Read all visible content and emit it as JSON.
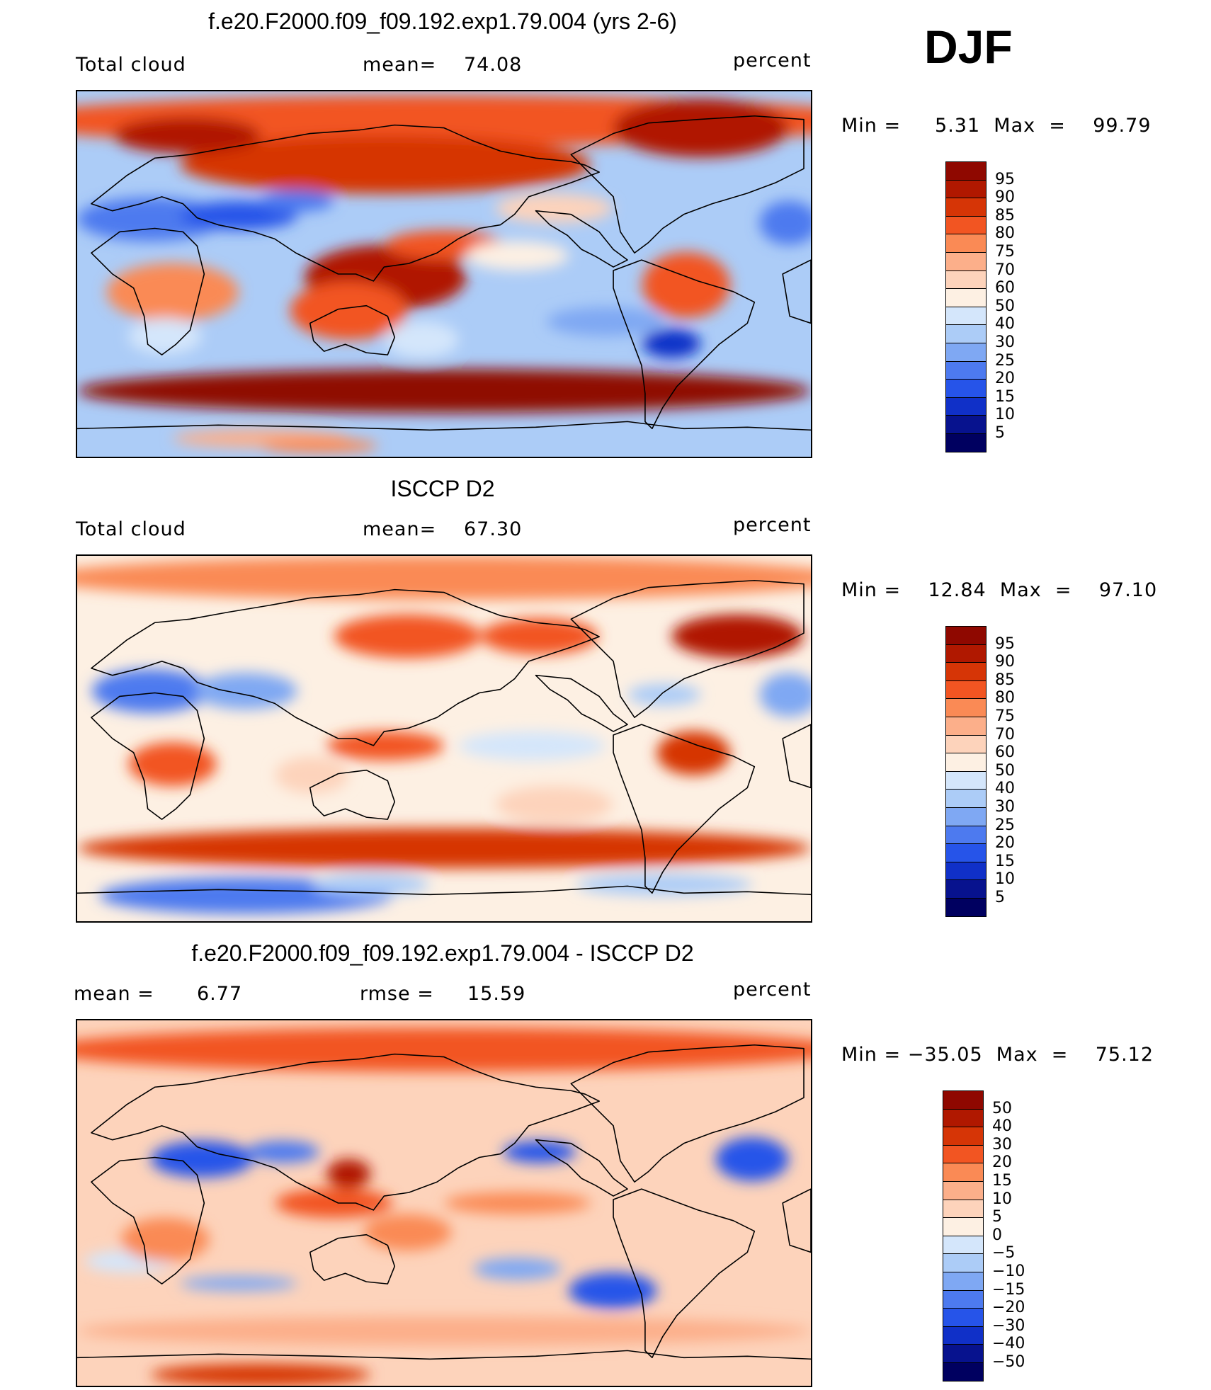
{
  "season": "DJF",
  "panels": [
    {
      "title": "f.e20.F2000.f09_f09.192.exp1.79.004 (yrs 2-6)",
      "left_label": "Total cloud",
      "stat_label": "mean=",
      "stat_value": "74.08",
      "stat2_label": "",
      "stat2_value": "",
      "units": "percent",
      "min_max": "Min =     5.31  Max  =    99.79",
      "colorbar_labels": [
        "95",
        "90",
        "85",
        "80",
        "75",
        "70",
        "60",
        "50",
        "40",
        "30",
        "25",
        "20",
        "15",
        "10",
        "5"
      ],
      "colors": [
        "#8f0800",
        "#b01800",
        "#d63506",
        "#f25522",
        "#fa8a55",
        "#fcaf8a",
        "#fdd3bb",
        "#fdf0e3",
        "#d4e6fb",
        "#acccf7",
        "#7fa8f3",
        "#4d7aef",
        "#2654e9",
        "#1030c8",
        "#07128e",
        "#000060"
      ]
    },
    {
      "title": "ISCCP D2",
      "left_label": "Total cloud",
      "stat_label": "mean=",
      "stat_value": "67.30",
      "stat2_label": "",
      "stat2_value": "",
      "units": "percent",
      "min_max": "Min =    12.84  Max  =    97.10",
      "colorbar_labels": [
        "95",
        "90",
        "85",
        "80",
        "75",
        "70",
        "60",
        "50",
        "40",
        "30",
        "25",
        "20",
        "15",
        "10",
        "5"
      ],
      "colors": [
        "#8f0800",
        "#b01800",
        "#d63506",
        "#f25522",
        "#fa8a55",
        "#fcaf8a",
        "#fdd3bb",
        "#fdf0e3",
        "#d4e6fb",
        "#acccf7",
        "#7fa8f3",
        "#4d7aef",
        "#2654e9",
        "#1030c8",
        "#07128e",
        "#000060"
      ]
    },
    {
      "title": "f.e20.F2000.f09_f09.192.exp1.79.004 - ISCCP D2",
      "left_label": "mean =",
      "stat_label": "",
      "stat_value": "6.77",
      "stat2_label": "rmse =",
      "stat2_value": "15.59",
      "units": "percent",
      "min_max": "Min = −35.05  Max  =    75.12",
      "colorbar_labels": [
        "50",
        "40",
        "30",
        "20",
        "15",
        "10",
        "5",
        "0",
        "−5",
        "−10",
        "−15",
        "−20",
        "−30",
        "−40",
        "−50"
      ],
      "colors": [
        "#8f0800",
        "#b01800",
        "#d63506",
        "#f25522",
        "#fa8a55",
        "#fcaf8a",
        "#fdd3bb",
        "#fdf0e3",
        "#d4e6fb",
        "#acccf7",
        "#7fa8f3",
        "#4d7aef",
        "#2654e9",
        "#1030c8",
        "#07128e",
        "#000060"
      ]
    }
  ],
  "fields": [
    {
      "bg": 9,
      "blobs": [
        [
          0.5,
          0.08,
          0.6,
          0.07,
          3
        ],
        [
          0.42,
          0.2,
          0.28,
          0.08,
          2
        ],
        [
          0.15,
          0.12,
          0.1,
          0.05,
          1
        ],
        [
          0.85,
          0.1,
          0.12,
          0.08,
          1
        ],
        [
          0.1,
          0.35,
          0.1,
          0.06,
          11
        ],
        [
          0.22,
          0.34,
          0.08,
          0.04,
          12
        ],
        [
          0.3,
          0.3,
          0.05,
          0.03,
          11
        ],
        [
          0.97,
          0.36,
          0.04,
          0.06,
          11
        ],
        [
          0.13,
          0.55,
          0.09,
          0.08,
          4
        ],
        [
          0.12,
          0.67,
          0.05,
          0.05,
          8
        ],
        [
          0.42,
          0.51,
          0.11,
          0.09,
          1
        ],
        [
          0.37,
          0.6,
          0.08,
          0.08,
          3
        ],
        [
          0.5,
          0.42,
          0.08,
          0.04,
          3
        ],
        [
          0.83,
          0.53,
          0.06,
          0.09,
          3
        ],
        [
          0.81,
          0.69,
          0.04,
          0.04,
          13
        ],
        [
          0.72,
          0.63,
          0.08,
          0.04,
          10
        ],
        [
          0.6,
          0.45,
          0.07,
          0.04,
          7
        ],
        [
          0.47,
          0.68,
          0.05,
          0.05,
          8
        ],
        [
          0.5,
          0.82,
          0.5,
          0.06,
          0
        ],
        [
          0.25,
          0.95,
          0.12,
          0.025,
          5
        ],
        [
          0.33,
          0.97,
          0.08,
          0.02,
          4
        ],
        [
          0.65,
          0.32,
          0.08,
          0.04,
          6
        ]
      ]
    },
    {
      "bg": 7,
      "blobs": [
        [
          0.5,
          0.06,
          0.55,
          0.06,
          4
        ],
        [
          0.45,
          0.22,
          0.1,
          0.06,
          3
        ],
        [
          0.63,
          0.22,
          0.08,
          0.05,
          3
        ],
        [
          0.9,
          0.22,
          0.09,
          0.06,
          1
        ],
        [
          0.1,
          0.37,
          0.08,
          0.06,
          11
        ],
        [
          0.23,
          0.37,
          0.07,
          0.05,
          10
        ],
        [
          0.97,
          0.38,
          0.04,
          0.06,
          10
        ],
        [
          0.13,
          0.57,
          0.06,
          0.06,
          3
        ],
        [
          0.42,
          0.52,
          0.08,
          0.04,
          3
        ],
        [
          0.84,
          0.54,
          0.05,
          0.06,
          2
        ],
        [
          0.62,
          0.52,
          0.1,
          0.04,
          8
        ],
        [
          0.8,
          0.38,
          0.05,
          0.03,
          9
        ],
        [
          0.5,
          0.8,
          0.5,
          0.055,
          2
        ],
        [
          0.23,
          0.93,
          0.2,
          0.05,
          11
        ],
        [
          0.4,
          0.9,
          0.08,
          0.03,
          9
        ],
        [
          0.8,
          0.9,
          0.12,
          0.03,
          9
        ],
        [
          0.65,
          0.68,
          0.08,
          0.05,
          6
        ],
        [
          0.32,
          0.6,
          0.05,
          0.05,
          6
        ]
      ]
    },
    {
      "bg": 6,
      "blobs": [
        [
          0.5,
          0.08,
          0.55,
          0.06,
          3
        ],
        [
          0.17,
          0.38,
          0.07,
          0.05,
          12
        ],
        [
          0.28,
          0.36,
          0.05,
          0.03,
          11
        ],
        [
          0.92,
          0.38,
          0.05,
          0.06,
          12
        ],
        [
          0.63,
          0.36,
          0.05,
          0.03,
          12
        ],
        [
          0.37,
          0.42,
          0.03,
          0.04,
          1
        ],
        [
          0.35,
          0.5,
          0.08,
          0.04,
          3
        ],
        [
          0.6,
          0.5,
          0.1,
          0.03,
          4
        ],
        [
          0.73,
          0.74,
          0.06,
          0.05,
          12
        ],
        [
          0.6,
          0.68,
          0.06,
          0.03,
          10
        ],
        [
          0.22,
          0.72,
          0.08,
          0.02,
          10
        ],
        [
          0.07,
          0.66,
          0.06,
          0.03,
          8
        ],
        [
          0.5,
          0.85,
          0.5,
          0.04,
          5
        ],
        [
          0.25,
          0.97,
          0.15,
          0.03,
          2
        ],
        [
          0.45,
          0.58,
          0.06,
          0.05,
          4
        ],
        [
          0.12,
          0.6,
          0.06,
          0.06,
          4
        ]
      ]
    }
  ]
}
